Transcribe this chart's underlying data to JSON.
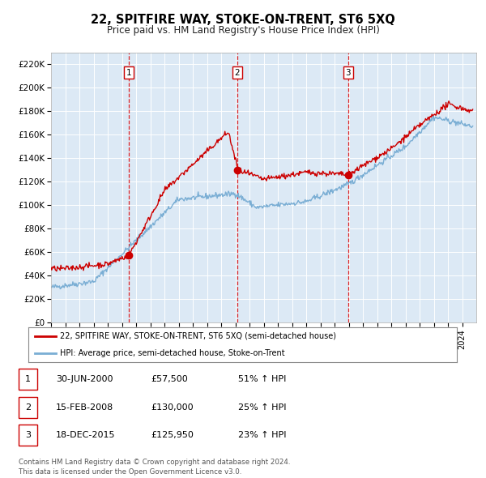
{
  "title": "22, SPITFIRE WAY, STOKE-ON-TRENT, ST6 5XQ",
  "subtitle": "Price paid vs. HM Land Registry's House Price Index (HPI)",
  "ylabel_ticks": [
    "£0",
    "£20K",
    "£40K",
    "£60K",
    "£80K",
    "£100K",
    "£120K",
    "£140K",
    "£160K",
    "£180K",
    "£200K",
    "£220K"
  ],
  "ytick_values": [
    0,
    20000,
    40000,
    60000,
    80000,
    100000,
    120000,
    140000,
    160000,
    180000,
    200000,
    220000
  ],
  "ylim": [
    0,
    230000
  ],
  "sale_year_nums": [
    2000.5,
    2008.125,
    2015.958
  ],
  "sale_prices": [
    57500,
    130000,
    125950
  ],
  "sale_labels": [
    "1",
    "2",
    "3"
  ],
  "hpi_line_color": "#7aaed4",
  "price_line_color": "#cc0000",
  "dashed_line_color": "#dd0000",
  "plot_bg_color": "#dce9f5",
  "grid_color": "#ffffff",
  "fig_bg_color": "#ffffff",
  "legend_label_red": "22, SPITFIRE WAY, STOKE-ON-TRENT, ST6 5XQ (semi-detached house)",
  "legend_label_blue": "HPI: Average price, semi-detached house, Stoke-on-Trent",
  "table_entries": [
    {
      "num": "1",
      "date": "30-JUN-2000",
      "price": "£57,500",
      "change": "51% ↑ HPI"
    },
    {
      "num": "2",
      "date": "15-FEB-2008",
      "price": "£130,000",
      "change": "25% ↑ HPI"
    },
    {
      "num": "3",
      "date": "18-DEC-2015",
      "price": "£125,950",
      "change": "23% ↑ HPI"
    }
  ],
  "footer": "Contains HM Land Registry data © Crown copyright and database right 2024.\nThis data is licensed under the Open Government Licence v3.0.",
  "xstart_year": 1995,
  "xend_year": 2025
}
